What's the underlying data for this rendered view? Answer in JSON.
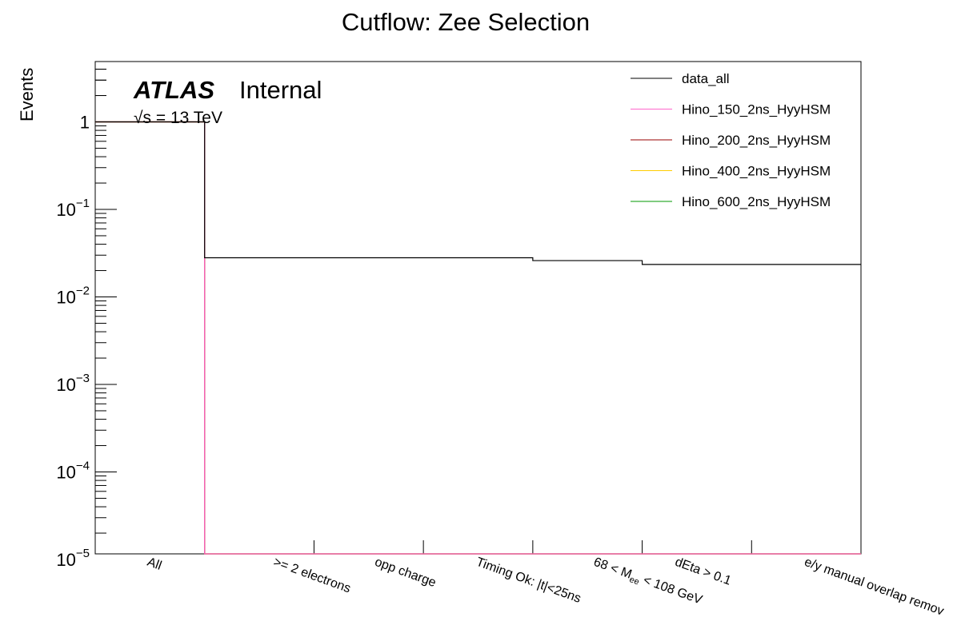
{
  "chart_data": {
    "type": "bar",
    "title": "Cutflow: Zee Selection",
    "xlabel": "",
    "ylabel": "Events",
    "yscale": "log",
    "ylim": [
      1e-05,
      5
    ],
    "grid": false,
    "legend_position": "top-right",
    "categories": [
      "All",
      ">= 2 electrons",
      "opp charge",
      "Timing Ok: |t|<25ns",
      "68 < M_ee < 108 GeV",
      "dEta > 0.1",
      "e/y manual overlap remov"
    ],
    "category_labels": {
      "mass_main": "68 < M",
      "mass_sub": "ee",
      "mass_rest": " < 108 GeV"
    },
    "series": [
      {
        "name": "data_all",
        "color": "#000000",
        "values": [
          1,
          0.028,
          0.028,
          0.028,
          0.026,
          0.0235,
          0.0235
        ]
      },
      {
        "name": "Hino_150_2ns_HyyHSM",
        "color": "#ff66cc",
        "values": [
          1,
          1e-05,
          1e-05,
          1e-05,
          1e-05,
          1e-05,
          1e-05
        ]
      },
      {
        "name": "Hino_200_2ns_HyyHSM",
        "color": "#990000",
        "values": [
          1,
          1e-05,
          1e-05,
          1e-05,
          1e-05,
          1e-05,
          1e-05
        ]
      },
      {
        "name": "Hino_400_2ns_HyyHSM",
        "color": "#ffcc00",
        "values": [
          1,
          1e-05,
          1e-05,
          1e-05,
          1e-05,
          1e-05,
          1e-05
        ]
      },
      {
        "name": "Hino_600_2ns_HyyHSM",
        "color": "#009900",
        "values": [
          1,
          1e-05,
          1e-05,
          1e-05,
          1e-05,
          1e-05,
          1e-05
        ]
      }
    ],
    "y_tick_labels": [
      {
        "value": 1,
        "base": "1",
        "exp": ""
      },
      {
        "value": 0.1,
        "base": "10",
        "exp": "−1"
      },
      {
        "value": 0.01,
        "base": "10",
        "exp": "−2"
      },
      {
        "value": 0.001,
        "base": "10",
        "exp": "−3"
      },
      {
        "value": 0.0001,
        "base": "10",
        "exp": "−4"
      },
      {
        "value": 1e-05,
        "base": "10",
        "exp": "−5"
      }
    ]
  },
  "annotations": {
    "atlas": "ATLAS",
    "internal": "Internal",
    "energy": "√s = 13 TeV"
  }
}
